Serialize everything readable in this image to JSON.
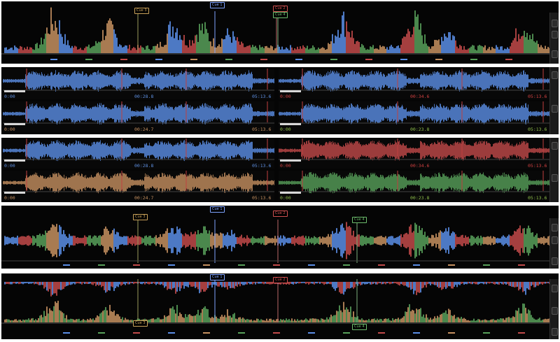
{
  "colors": {
    "blue": "#5b8ee6",
    "red": "#c24a4a",
    "green": "#58a05a",
    "orange": "#c59060",
    "blue_text": "#5e8fe0",
    "red_text": "#d04040",
    "green_text": "#8fbf4a",
    "cue_line_blue": "#7fa3ff",
    "cue_line_red": "#b66",
    "cue_line_green": "#7ab07a",
    "cue_line_olive": "#8a8a5a"
  },
  "cues": {
    "cue1": "Cue 1",
    "cue2": "Cue 2",
    "cue3": "Cue 3",
    "cue4": "Cue 4"
  },
  "decks": {
    "row1": [
      {
        "color": "blue",
        "start": "0:00",
        "mid": "00:28.8",
        "end": "05:13.6",
        "text_color": "blue_text"
      },
      {
        "color": "blue",
        "start": "0:00",
        "mid": "00:34.6",
        "end": "05:13.6",
        "text_color": "red_text"
      }
    ],
    "row2": [
      {
        "color": "blue",
        "start": "0:00",
        "mid": "00:24.7",
        "end": "05:13.6",
        "text_color": "orange"
      },
      {
        "color": "blue",
        "start": "0:00",
        "mid": "00:23.8",
        "end": "05:13.6",
        "text_color": "green_text"
      }
    ],
    "row3": [
      {
        "color": "blue",
        "start": "0:00",
        "mid": "00:28.8",
        "end": "05:13.6",
        "text_color": "blue_text"
      },
      {
        "color": "red",
        "start": "0:00",
        "mid": "00:34.6",
        "end": "05:13.6",
        "text_color": "red_text"
      }
    ],
    "row4": [
      {
        "color": "orange",
        "start": "0:00",
        "mid": "00:24.7",
        "end": "05:13.6",
        "text_color": "orange"
      },
      {
        "color": "green",
        "start": "0:00",
        "mid": "00:23.8",
        "end": "05:13.6",
        "text_color": "green_text"
      }
    ]
  }
}
